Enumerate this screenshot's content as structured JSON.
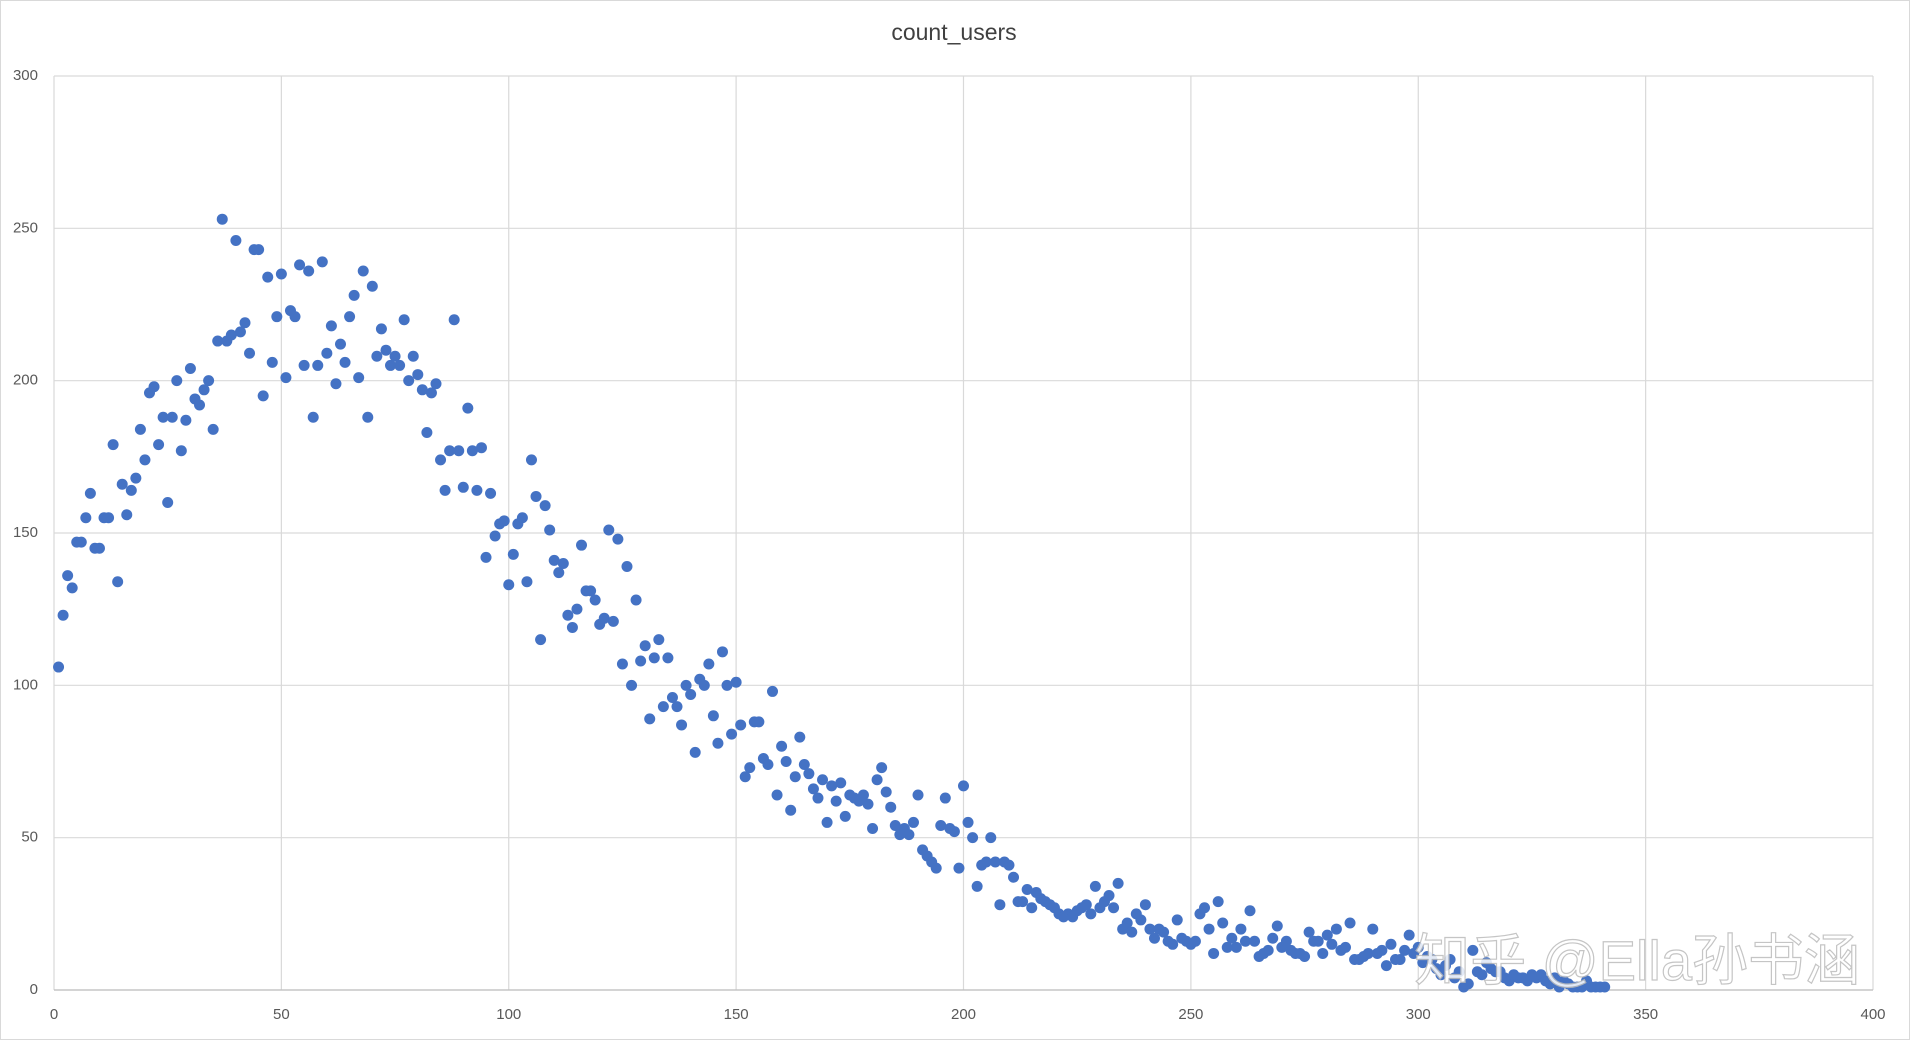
{
  "chart_data": {
    "type": "scatter",
    "title": "count_users",
    "watermark": "知乎 @Ella孙书涵",
    "color": "#4472c4",
    "grid": true,
    "xlim": [
      0,
      400
    ],
    "xticks": [
      0,
      50,
      100,
      150,
      200,
      250,
      300,
      350,
      400
    ],
    "ylim": [
      0,
      300
    ],
    "yticks": [
      0,
      50,
      100,
      150,
      200,
      250,
      300
    ],
    "x": [
      1,
      2,
      3,
      4,
      5,
      6,
      7,
      8,
      9,
      10,
      11,
      12,
      13,
      14,
      15,
      16,
      17,
      18,
      19,
      20,
      21,
      22,
      23,
      24,
      25,
      26,
      27,
      28,
      29,
      30,
      31,
      32,
      33,
      34,
      35,
      36,
      37,
      38,
      39,
      40,
      41,
      42,
      43,
      44,
      45,
      46,
      47,
      48,
      49,
      50,
      51,
      52,
      53,
      54,
      55,
      56,
      57,
      58,
      59,
      60,
      61,
      62,
      63,
      64,
      65,
      66,
      67,
      68,
      69,
      70,
      71,
      72,
      73,
      74,
      75,
      76,
      77,
      78,
      79,
      80,
      81,
      82,
      83,
      84,
      85,
      86,
      87,
      88,
      89,
      90,
      91,
      92,
      93,
      94,
      95,
      96,
      97,
      98,
      99,
      100,
      101,
      102,
      103,
      104,
      105,
      106,
      107,
      108,
      109,
      110,
      111,
      112,
      113,
      114,
      115,
      116,
      117,
      118,
      119,
      120,
      121,
      122,
      123,
      124,
      125,
      126,
      127,
      128,
      129,
      130,
      131,
      132,
      133,
      134,
      135,
      136,
      137,
      138,
      139,
      140,
      141,
      142,
      143,
      144,
      145,
      146,
      147,
      148,
      149,
      150,
      151,
      152,
      153,
      154,
      155,
      156,
      157,
      158,
      159,
      160,
      161,
      162,
      163,
      164,
      165,
      166,
      167,
      168,
      169,
      170,
      171,
      172,
      173,
      174,
      175,
      176,
      177,
      178,
      179,
      180,
      181,
      182,
      183,
      184,
      185,
      186,
      187,
      188,
      189,
      190,
      191,
      192,
      193,
      194,
      195,
      196,
      197,
      198,
      199,
      200,
      201,
      202,
      203,
      204,
      205,
      206,
      207,
      208,
      209,
      210,
      211,
      212,
      213,
      214,
      215,
      216,
      217,
      218,
      219,
      220,
      221,
      222,
      223,
      224,
      225,
      226,
      227,
      228,
      229,
      230,
      231,
      232,
      233,
      234,
      235,
      236,
      237,
      238,
      239,
      240,
      241,
      242,
      243,
      244,
      245,
      246,
      247,
      248,
      249,
      250,
      251,
      252,
      253,
      254,
      255,
      256,
      257,
      258,
      259,
      260,
      261,
      262,
      263,
      264,
      265,
      266,
      267,
      268,
      269,
      270,
      271,
      272,
      273,
      274,
      275,
      276,
      277,
      278,
      279,
      280,
      281,
      282,
      283,
      284,
      285,
      286,
      287,
      288,
      289,
      290,
      291,
      292,
      293,
      294,
      295,
      296,
      297,
      298,
      299,
      300,
      301,
      302,
      303,
      304,
      305,
      306,
      307,
      308,
      309,
      310,
      311,
      312,
      313,
      314,
      315,
      316,
      317,
      318,
      319,
      320,
      321,
      322,
      323,
      324,
      325,
      326,
      327,
      328,
      329,
      330,
      331,
      332,
      333,
      334,
      335,
      336,
      337,
      338,
      339,
      340,
      341
    ],
    "values": [
      106,
      123,
      136,
      132,
      147,
      147,
      155,
      163,
      145,
      145,
      155,
      155,
      179,
      134,
      166,
      156,
      164,
      168,
      184,
      174,
      196,
      198,
      179,
      188,
      160,
      188,
      200,
      177,
      187,
      204,
      194,
      192,
      197,
      200,
      184,
      213,
      253,
      213,
      215,
      246,
      216,
      219,
      209,
      243,
      243,
      195,
      234,
      206,
      221,
      235,
      201,
      223,
      221,
      238,
      205,
      236,
      188,
      205,
      239,
      209,
      218,
      199,
      212,
      206,
      221,
      228,
      201,
      236,
      188,
      231,
      208,
      217,
      210,
      205,
      208,
      205,
      220,
      200,
      208,
      202,
      197,
      183,
      196,
      199,
      174,
      164,
      177,
      220,
      177,
      165,
      191,
      177,
      164,
      178,
      142,
      163,
      149,
      153,
      154,
      133,
      143,
      153,
      155,
      134,
      174,
      162,
      115,
      159,
      151,
      141,
      137,
      140,
      123,
      119,
      125,
      146,
      131,
      131,
      128,
      120,
      122,
      151,
      121,
      148,
      107,
      139,
      100,
      128,
      108,
      113,
      89,
      109,
      115,
      93,
      109,
      96,
      93,
      87,
      100,
      97,
      78,
      102,
      100,
      107,
      90,
      81,
      111,
      100,
      84,
      101,
      87,
      70,
      73,
      88,
      88,
      76,
      74,
      98,
      64,
      80,
      75,
      59,
      70,
      83,
      74,
      71,
      66,
      63,
      69,
      55,
      67,
      62,
      68,
      57,
      64,
      63,
      62,
      64,
      61,
      53,
      69,
      73,
      65,
      60,
      54,
      51,
      53,
      51,
      55,
      64,
      46,
      44,
      42,
      40,
      54,
      63,
      53,
      52,
      40,
      67,
      55,
      50,
      34,
      41,
      42,
      50,
      42,
      28,
      42,
      41,
      37,
      29,
      29,
      33,
      27,
      32,
      30,
      29,
      28,
      27,
      25,
      24,
      25,
      24,
      26,
      27,
      28,
      25,
      34,
      27,
      29,
      31,
      27,
      35,
      20,
      22,
      19,
      25,
      23,
      28,
      20,
      17,
      20,
      19,
      16,
      15,
      23,
      17,
      16,
      15,
      16,
      25,
      27,
      20,
      12,
      29,
      22,
      14,
      17,
      14,
      20,
      16,
      26,
      16,
      11,
      12,
      13,
      17,
      21,
      14,
      16,
      13,
      12,
      12,
      11,
      19,
      16,
      16,
      12,
      18,
      15,
      20,
      13,
      14,
      22,
      10,
      10,
      11,
      12,
      20,
      12,
      13,
      8,
      15,
      10,
      10,
      13,
      18,
      12,
      14,
      9,
      11,
      10,
      7,
      5,
      8,
      10,
      4,
      6,
      1,
      2,
      13,
      6,
      5,
      9,
      7,
      6,
      6,
      4,
      3,
      5,
      4,
      4,
      3,
      5,
      4,
      5,
      3,
      2,
      4,
      1,
      3,
      2,
      1,
      1,
      1,
      3,
      1,
      1,
      1,
      1
    ]
  }
}
